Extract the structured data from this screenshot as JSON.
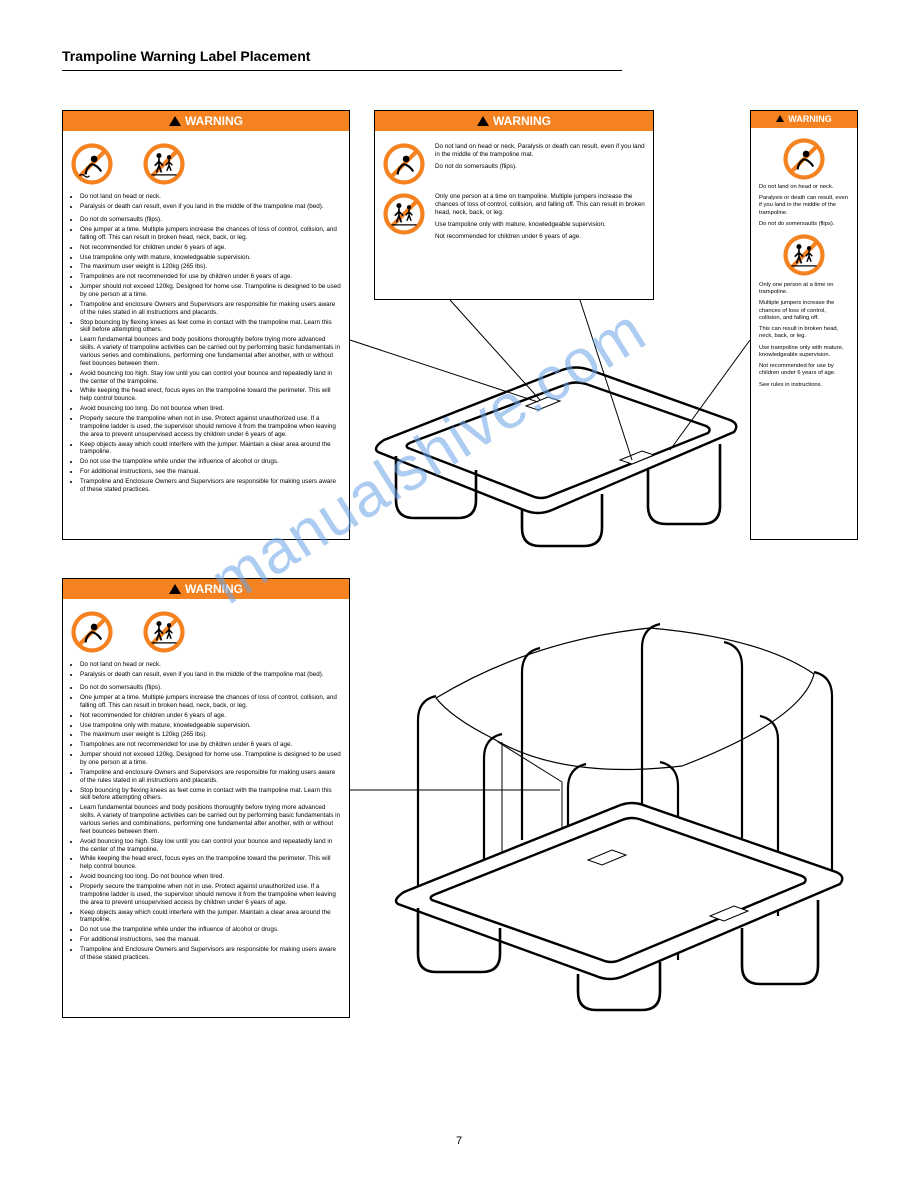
{
  "page": {
    "title": "Trampoline Warning Label Placement",
    "page_number": "7"
  },
  "colors": {
    "orange": "#f58220",
    "icon_fill": "#f58220",
    "icon_stroke": "#000000",
    "line": "#000000",
    "watermark": "#6aa3e6"
  },
  "watermark": "manualshive.com",
  "warn1": {
    "header": "WARNING",
    "lines": [
      "Do not land on head or neck.",
      "Paralysis or death can result, even if you land in the middle of the trampoline mat (bed).",
      "",
      "Do not do somersaults (flips).",
      "One jumper at a time. Multiple jumpers increase the chances of loss of control, collision, and falling off. This can result in broken head, neck, back, or leg.",
      "Not recommended for children under 6 years of age.",
      "Use trampoline only with mature, knowledgeable supervision.",
      "The maximum user weight is 120kg (265 lbs).",
      "Trampolines are not recommended for use by children under 6 years of age.",
      "Jumper should not exceed 120kg. Designed for home use. Trampoline is designed to be used by one person at a time.",
      "Trampoline and enclosure Owners and Supervisors are responsible for making users aware of the rules stated in all instructions and placards.",
      "Stop bouncing by flexing knees as feet come in contact with the trampoline mat. Learn this skill before attempting others.",
      "Learn fundamental bounces and body positions thoroughly before trying more advanced skills. A variety of trampoline activities can be carried out by performing basic fundamentals in various series and combinations, performing one fundamental after another, with or without feet bounces between them.",
      "Avoid bouncing too high. Stay low until you can control your bounce and repeatedly land in the center of the trampoline.",
      "While keeping the head erect, focus eyes on the trampoline toward the perimeter. This will help control bounce.",
      "Avoid bouncing too long. Do not bounce when tired.",
      "Properly secure the trampoline when not in use. Protect against unauthorized use. If a trampoline ladder is used, the supervisor should remove it from the trampoline when leaving the area to prevent unsupervised access by children under 6 years of age.",
      "Keep objects away which could interfere with the jumper. Maintain a clear area around the trampoline.",
      "Do not use the trampoline while under the influence of alcohol or drugs.",
      "For additional instructions, see the manual.",
      "Trampoline and Enclosure Owners and Supervisors are responsible for making users aware of these stated practices."
    ]
  },
  "warn2": {
    "header": "WARNING",
    "text1": "Do not land on head or neck. Paralysis or death can result, even if you land in the middle of the trampoline mat.",
    "text2": "Do not do somersaults (flips).",
    "text3": "Only one person at a time on trampoline. Multiple jumpers increase the chances of loss of control, collision, and falling off. This can result in broken head, neck, back, or leg.",
    "text4": "Use trampoline only with mature, knowledgeable supervision.",
    "text5": "Not recommended for children under 6 years of age."
  },
  "warn3": {
    "header": "WARNING",
    "l1": "Do not land on head or neck.",
    "l2": "Paralysis or death can result, even if you land in the middle of the trampoline.",
    "l3": "Do not do somersaults (flips).",
    "l4": "Only one person at a time on trampoline.",
    "l5": "Multiple jumpers increase the chances of loss of control, collision, and falling off.",
    "l6": "This can result in broken head, neck, back, or leg.",
    "l7": "Use trampoline only with mature, knowledgeable supervision.",
    "l8": "Not recommended for use by children under 6 years of age.",
    "l9": "See rules in instructions."
  },
  "warn4": {
    "header": "WARNING",
    "lines": [
      "Do not land on head or neck.",
      "Paralysis or death can result, even if you land in the middle of the trampoline mat (bed).",
      "",
      "Do not do somersaults (flips).",
      "One jumper at a time. Multiple jumpers increase the chances of loss of control, collision, and falling off. This can result in broken head, neck, back, or leg.",
      "Not recommended for children under 6 years of age.",
      "Use trampoline only with mature, knowledgeable supervision.",
      "The maximum user weight is 120kg (265 lbs).",
      "Trampolines are not recommended for use by children under 6 years of age.",
      "Jumper should not exceed 120kg. Designed for home use. Trampoline is designed to be used by one person at a time.",
      "Trampoline and enclosure Owners and Supervisors are responsible for making users aware of the rules stated in all instructions and placards.",
      "Stop bouncing by flexing knees as feet come in contact with the trampoline mat. Learn this skill before attempting others.",
      "Learn fundamental bounces and body positions thoroughly before trying more advanced skills. A variety of trampoline activities can be carried out by performing basic fundamentals in various series and combinations, performing one fundamental after another, with or without feet bounces between them.",
      "Avoid bouncing too high. Stay low until you can control your bounce and repeatedly land in the center of the trampoline.",
      "While keeping the head erect, focus eyes on the trampoline toward the perimeter. This will help control bounce.",
      "Avoid bouncing too long. Do not bounce when tired.",
      "Properly secure the trampoline when not in use. Protect against unauthorized use. If a trampoline ladder is used, the supervisor should remove it from the trampoline when leaving the area to prevent unsupervised access by children under 6 years of age.",
      "Keep objects away which could interfere with the jumper. Maintain a clear area around the trampoline.",
      "Do not use the trampoline while under the influence of alcohol or drugs.",
      "For additional instructions, see the manual.",
      "Trampoline and Enclosure Owners and Supervisors are responsible for making users aware of these stated practices."
    ]
  }
}
